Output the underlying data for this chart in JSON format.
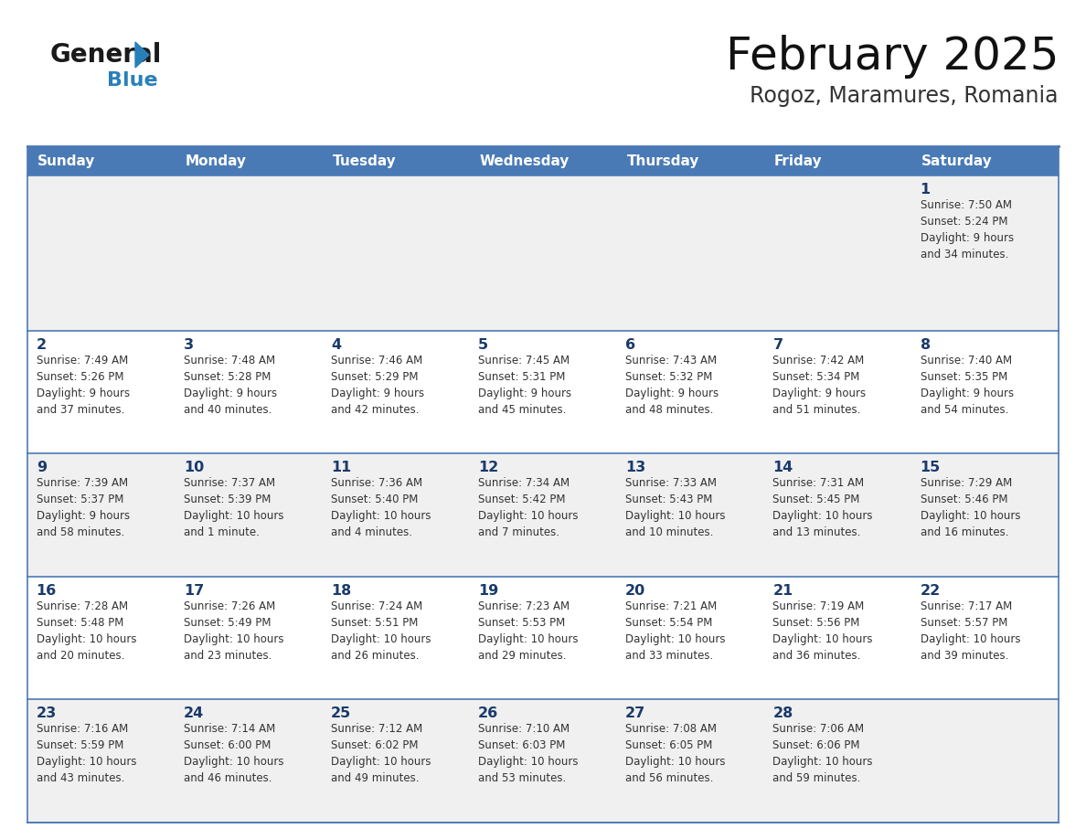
{
  "title": "February 2025",
  "subtitle": "Rogoz, Maramures, Romania",
  "days_of_week": [
    "Sunday",
    "Monday",
    "Tuesday",
    "Wednesday",
    "Thursday",
    "Friday",
    "Saturday"
  ],
  "header_bg": "#4a7ab5",
  "header_text_color": "#FFFFFF",
  "row_bg_odd": "#f0f0f0",
  "row_bg_even": "#FFFFFF",
  "cell_text_color": "#333333",
  "day_number_color": "#1a3a6b",
  "border_color": "#4a7ab5",
  "logo_general_color": "#1a1a1a",
  "logo_blue_color": "#2980b9",
  "calendar_data": [
    [
      null,
      null,
      null,
      null,
      null,
      null,
      {
        "day": 1,
        "sunrise": "7:50 AM",
        "sunset": "5:24 PM",
        "daylight": "9 hours\nand 34 minutes."
      }
    ],
    [
      {
        "day": 2,
        "sunrise": "7:49 AM",
        "sunset": "5:26 PM",
        "daylight": "9 hours\nand 37 minutes."
      },
      {
        "day": 3,
        "sunrise": "7:48 AM",
        "sunset": "5:28 PM",
        "daylight": "9 hours\nand 40 minutes."
      },
      {
        "day": 4,
        "sunrise": "7:46 AM",
        "sunset": "5:29 PM",
        "daylight": "9 hours\nand 42 minutes."
      },
      {
        "day": 5,
        "sunrise": "7:45 AM",
        "sunset": "5:31 PM",
        "daylight": "9 hours\nand 45 minutes."
      },
      {
        "day": 6,
        "sunrise": "7:43 AM",
        "sunset": "5:32 PM",
        "daylight": "9 hours\nand 48 minutes."
      },
      {
        "day": 7,
        "sunrise": "7:42 AM",
        "sunset": "5:34 PM",
        "daylight": "9 hours\nand 51 minutes."
      },
      {
        "day": 8,
        "sunrise": "7:40 AM",
        "sunset": "5:35 PM",
        "daylight": "9 hours\nand 54 minutes."
      }
    ],
    [
      {
        "day": 9,
        "sunrise": "7:39 AM",
        "sunset": "5:37 PM",
        "daylight": "9 hours\nand 58 minutes."
      },
      {
        "day": 10,
        "sunrise": "7:37 AM",
        "sunset": "5:39 PM",
        "daylight": "10 hours\nand 1 minute."
      },
      {
        "day": 11,
        "sunrise": "7:36 AM",
        "sunset": "5:40 PM",
        "daylight": "10 hours\nand 4 minutes."
      },
      {
        "day": 12,
        "sunrise": "7:34 AM",
        "sunset": "5:42 PM",
        "daylight": "10 hours\nand 7 minutes."
      },
      {
        "day": 13,
        "sunrise": "7:33 AM",
        "sunset": "5:43 PM",
        "daylight": "10 hours\nand 10 minutes."
      },
      {
        "day": 14,
        "sunrise": "7:31 AM",
        "sunset": "5:45 PM",
        "daylight": "10 hours\nand 13 minutes."
      },
      {
        "day": 15,
        "sunrise": "7:29 AM",
        "sunset": "5:46 PM",
        "daylight": "10 hours\nand 16 minutes."
      }
    ],
    [
      {
        "day": 16,
        "sunrise": "7:28 AM",
        "sunset": "5:48 PM",
        "daylight": "10 hours\nand 20 minutes."
      },
      {
        "day": 17,
        "sunrise": "7:26 AM",
        "sunset": "5:49 PM",
        "daylight": "10 hours\nand 23 minutes."
      },
      {
        "day": 18,
        "sunrise": "7:24 AM",
        "sunset": "5:51 PM",
        "daylight": "10 hours\nand 26 minutes."
      },
      {
        "day": 19,
        "sunrise": "7:23 AM",
        "sunset": "5:53 PM",
        "daylight": "10 hours\nand 29 minutes."
      },
      {
        "day": 20,
        "sunrise": "7:21 AM",
        "sunset": "5:54 PM",
        "daylight": "10 hours\nand 33 minutes."
      },
      {
        "day": 21,
        "sunrise": "7:19 AM",
        "sunset": "5:56 PM",
        "daylight": "10 hours\nand 36 minutes."
      },
      {
        "day": 22,
        "sunrise": "7:17 AM",
        "sunset": "5:57 PM",
        "daylight": "10 hours\nand 39 minutes."
      }
    ],
    [
      {
        "day": 23,
        "sunrise": "7:16 AM",
        "sunset": "5:59 PM",
        "daylight": "10 hours\nand 43 minutes."
      },
      {
        "day": 24,
        "sunrise": "7:14 AM",
        "sunset": "6:00 PM",
        "daylight": "10 hours\nand 46 minutes."
      },
      {
        "day": 25,
        "sunrise": "7:12 AM",
        "sunset": "6:02 PM",
        "daylight": "10 hours\nand 49 minutes."
      },
      {
        "day": 26,
        "sunrise": "7:10 AM",
        "sunset": "6:03 PM",
        "daylight": "10 hours\nand 53 minutes."
      },
      {
        "day": 27,
        "sunrise": "7:08 AM",
        "sunset": "6:05 PM",
        "daylight": "10 hours\nand 56 minutes."
      },
      {
        "day": 28,
        "sunrise": "7:06 AM",
        "sunset": "6:06 PM",
        "daylight": "10 hours\nand 59 minutes."
      },
      null
    ]
  ]
}
